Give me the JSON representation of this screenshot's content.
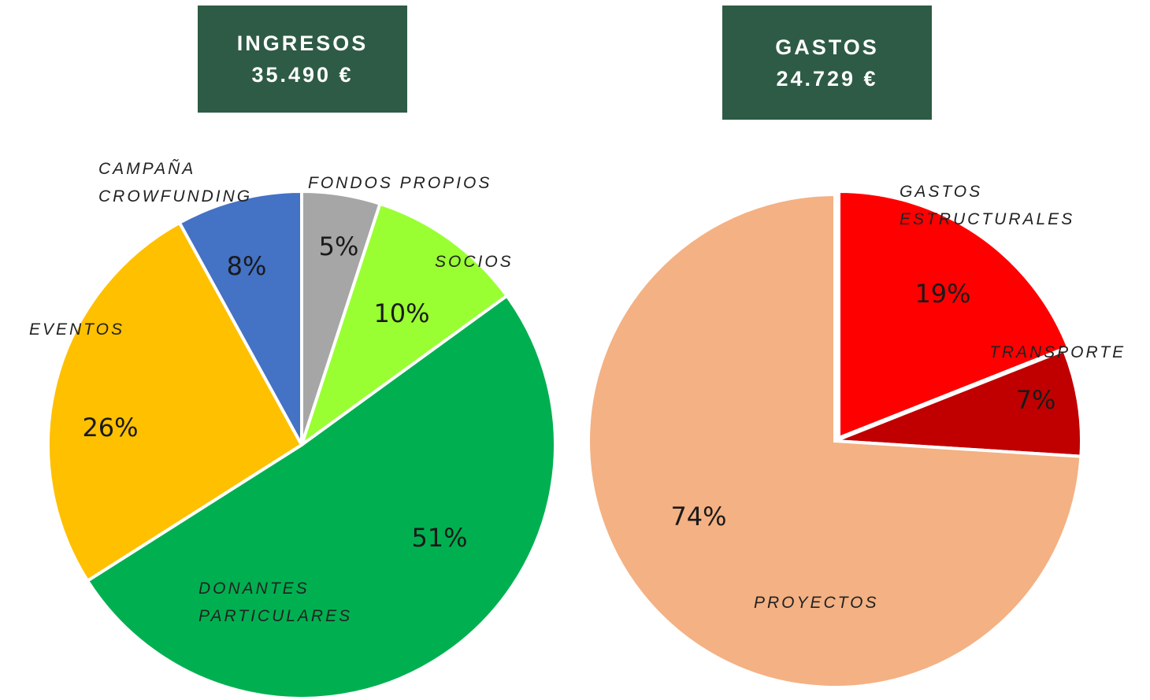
{
  "chart_data": [
    {
      "type": "pie",
      "title": "INGRESOS",
      "subtitle": "35.490 €",
      "categories": [
        "FONDOS PROPIOS",
        "SOCIOS",
        "DONANTES PARTICULARES",
        "EVENTOS",
        "CAMPAÑA CROWFUNDING"
      ],
      "values": [
        5,
        10,
        51,
        26,
        8
      ],
      "value_labels": [
        "5%",
        "10%",
        "51%",
        "26%",
        "8%"
      ],
      "colors": [
        "#a6a6a6",
        "#99ff33",
        "#00b050",
        "#ffc000",
        "#4472c4"
      ]
    },
    {
      "type": "pie",
      "title": "GASTOS",
      "subtitle": "24.729 €",
      "categories": [
        "GASTOS ESTRUCTURALES",
        "TRANSPORTE",
        "PROYECTOS"
      ],
      "values": [
        19,
        7,
        74
      ],
      "value_labels": [
        "19%",
        "7%",
        "74%"
      ],
      "colors": [
        "#ff0000",
        "#c00000",
        "#f4b183"
      ]
    }
  ]
}
